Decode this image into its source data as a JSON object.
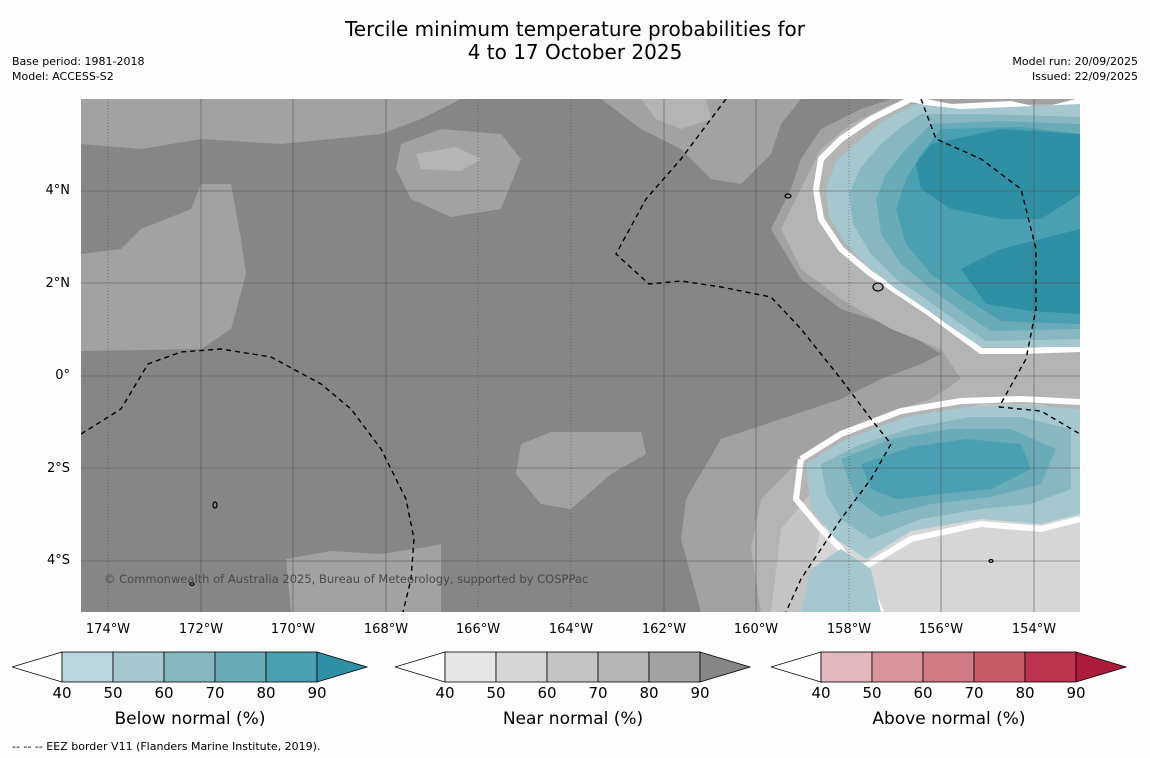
{
  "title_line1": "Tercile minimum temperature probabilities for",
  "title_line2": "4 to 17 October 2025",
  "base_period": "Base period: 1981-2018",
  "model": "Model: ACCESS-S2",
  "model_run": "Model run: 20/09/2025",
  "issued": "Issued: 22/09/2025",
  "copyright": "© Commonwealth of Australia 2025, Bureau of Meteorology, supported by COSPPac",
  "footnote": "--  --  -- EEZ border V11 (Flanders Marine Institute, 2019).",
  "lat_labels": [
    "4°N",
    "2°N",
    "0°",
    "2°S",
    "4°S"
  ],
  "lon_labels": [
    "174°W",
    "172°W",
    "170°W",
    "168°W",
    "166°W",
    "164°W",
    "162°W",
    "160°W",
    "158°W",
    "156°W",
    "154°W"
  ],
  "colorbars": [
    {
      "label": "Below normal (%)",
      "ticks": [
        "40",
        "50",
        "60",
        "70",
        "80",
        "90"
      ],
      "colors": [
        "#bdd5dc",
        "#a4c8ce",
        "#88b8bf",
        "#6aabb8",
        "#4aa0b2",
        "#2f8fa5"
      ]
    },
    {
      "label": "Near normal (%)",
      "ticks": [
        "40",
        "50",
        "60",
        "70",
        "80",
        "90"
      ],
      "colors": [
        "#e6e6e6",
        "#d6d6d6",
        "#c4c4c4",
        "#b4b4b4",
        "#a2a2a2",
        "#868686"
      ]
    },
    {
      "label": "Above normal (%)",
      "ticks": [
        "40",
        "50",
        "60",
        "70",
        "80",
        "90"
      ],
      "colors": [
        "#e3b8be",
        "#d9959e",
        "#cf7a84",
        "#c75c68",
        "#bc3450",
        "#ab1a3a"
      ]
    }
  ],
  "map_colors": {
    "near_90": "#868686",
    "near_80": "#a2a2a2",
    "near_70": "#b4b4b4",
    "near_60": "#c4c4c4",
    "near_50": "#d6d6d6",
    "below_50": "#a4c8ce",
    "below_60": "#88b8bf",
    "below_70": "#6aabb8",
    "below_80": "#4aa0b2",
    "below_90": "#2f8fa5"
  }
}
